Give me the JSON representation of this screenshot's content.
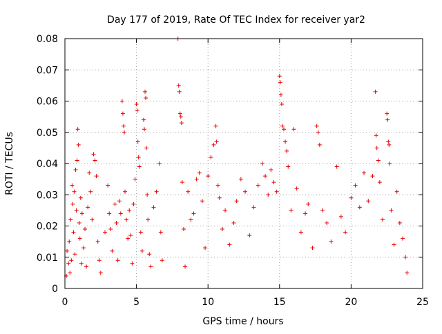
{
  "chart_data": {
    "type": "scatter",
    "title": "Day 177 of 2019, Rate Of TEC Index for receiver yar2",
    "xlabel": "GPS time / hours",
    "ylabel": "ROTI / TECUs",
    "xlim": [
      0,
      25
    ],
    "ylim": [
      0,
      0.08
    ],
    "grid": true,
    "marker": "+",
    "point_color": "#e60000",
    "x_ticks": [
      0,
      5,
      10,
      15,
      20,
      25
    ],
    "x_tick_labels": [
      "0",
      "5",
      "10",
      "15",
      "20",
      "25"
    ],
    "y_ticks": [
      0,
      0.01,
      0.02,
      0.03,
      0.04,
      0.05,
      0.06,
      0.07,
      0.08
    ],
    "y_tick_labels": [
      "0",
      "0.01",
      "0.02",
      "0.03",
      "0.04",
      "0.05",
      "0.06",
      "0.07",
      "0.08"
    ],
    "series": [
      {
        "name": "ROTI",
        "points": [
          [
            0.1,
            0.004
          ],
          [
            0.15,
            0.012
          ],
          [
            0.25,
            0.008
          ],
          [
            0.3,
            0.015
          ],
          [
            0.35,
            0.005
          ],
          [
            0.4,
            0.022
          ],
          [
            0.45,
            0.009
          ],
          [
            0.5,
            0.033
          ],
          [
            0.55,
            0.027
          ],
          [
            0.6,
            0.018
          ],
          [
            0.65,
            0.031
          ],
          [
            0.7,
            0.011
          ],
          [
            0.75,
            0.038
          ],
          [
            0.8,
            0.025
          ],
          [
            0.85,
            0.041
          ],
          [
            0.9,
            0.051
          ],
          [
            0.95,
            0.046
          ],
          [
            1.0,
            0.021
          ],
          [
            1.05,
            0.016
          ],
          [
            1.1,
            0.029
          ],
          [
            1.15,
            0.008
          ],
          [
            1.2,
            0.024
          ],
          [
            1.3,
            0.013
          ],
          [
            1.4,
            0.019
          ],
          [
            1.5,
            0.007
          ],
          [
            1.6,
            0.026
          ],
          [
            1.7,
            0.037
          ],
          [
            1.8,
            0.031
          ],
          [
            1.9,
            0.022
          ],
          [
            2.0,
            0.043
          ],
          [
            2.1,
            0.041
          ],
          [
            2.2,
            0.036
          ],
          [
            2.3,
            0.015
          ],
          [
            2.4,
            0.009
          ],
          [
            2.5,
            0.005
          ],
          [
            2.8,
            0.018
          ],
          [
            3.0,
            0.033
          ],
          [
            3.1,
            0.024
          ],
          [
            3.2,
            0.019
          ],
          [
            3.3,
            0.012
          ],
          [
            3.5,
            0.027
          ],
          [
            3.6,
            0.021
          ],
          [
            3.7,
            0.009
          ],
          [
            3.8,
            0.028
          ],
          [
            3.9,
            0.024
          ],
          [
            4.0,
            0.06
          ],
          [
            4.05,
            0.056
          ],
          [
            4.1,
            0.052
          ],
          [
            4.15,
            0.05
          ],
          [
            4.2,
            0.031
          ],
          [
            4.3,
            0.022
          ],
          [
            4.4,
            0.016
          ],
          [
            4.5,
            0.025
          ],
          [
            4.6,
            0.017
          ],
          [
            4.7,
            0.008
          ],
          [
            4.8,
            0.027
          ],
          [
            4.9,
            0.035
          ],
          [
            5.0,
            0.059
          ],
          [
            5.05,
            0.057
          ],
          [
            5.1,
            0.047
          ],
          [
            5.15,
            0.042
          ],
          [
            5.2,
            0.039
          ],
          [
            5.3,
            0.018
          ],
          [
            5.4,
            0.012
          ],
          [
            5.5,
            0.054
          ],
          [
            5.55,
            0.051
          ],
          [
            5.6,
            0.063
          ],
          [
            5.65,
            0.061
          ],
          [
            5.7,
            0.045
          ],
          [
            5.75,
            0.03
          ],
          [
            5.8,
            0.022
          ],
          [
            5.9,
            0.011
          ],
          [
            6.0,
            0.007
          ],
          [
            6.2,
            0.026
          ],
          [
            6.4,
            0.031
          ],
          [
            6.6,
            0.04
          ],
          [
            6.7,
            0.018
          ],
          [
            6.8,
            0.009
          ],
          [
            7.9,
            0.08
          ],
          [
            7.95,
            0.065
          ],
          [
            8.0,
            0.063
          ],
          [
            8.05,
            0.056
          ],
          [
            8.1,
            0.055
          ],
          [
            8.15,
            0.053
          ],
          [
            8.2,
            0.034
          ],
          [
            8.3,
            0.019
          ],
          [
            8.4,
            0.007
          ],
          [
            8.6,
            0.031
          ],
          [
            8.8,
            0.022
          ],
          [
            9.0,
            0.024
          ],
          [
            9.2,
            0.035
          ],
          [
            9.4,
            0.037
          ],
          [
            9.6,
            0.028
          ],
          [
            9.8,
            0.013
          ],
          [
            10.0,
            0.036
          ],
          [
            10.2,
            0.042
          ],
          [
            10.4,
            0.046
          ],
          [
            10.55,
            0.052
          ],
          [
            10.6,
            0.047
          ],
          [
            10.7,
            0.033
          ],
          [
            10.8,
            0.029
          ],
          [
            11.0,
            0.019
          ],
          [
            11.2,
            0.025
          ],
          [
            11.5,
            0.014
          ],
          [
            11.8,
            0.021
          ],
          [
            12.0,
            0.028
          ],
          [
            12.3,
            0.035
          ],
          [
            12.6,
            0.031
          ],
          [
            12.9,
            0.017
          ],
          [
            13.2,
            0.026
          ],
          [
            13.5,
            0.033
          ],
          [
            13.8,
            0.04
          ],
          [
            14.0,
            0.036
          ],
          [
            14.2,
            0.03
          ],
          [
            14.4,
            0.038
          ],
          [
            14.6,
            0.034
          ],
          [
            14.8,
            0.031
          ],
          [
            15.0,
            0.068
          ],
          [
            15.05,
            0.066
          ],
          [
            15.1,
            0.062
          ],
          [
            15.15,
            0.059
          ],
          [
            15.2,
            0.052
          ],
          [
            15.3,
            0.051
          ],
          [
            15.4,
            0.047
          ],
          [
            15.5,
            0.044
          ],
          [
            15.6,
            0.039
          ],
          [
            15.8,
            0.025
          ],
          [
            16.0,
            0.051
          ],
          [
            16.2,
            0.032
          ],
          [
            16.5,
            0.018
          ],
          [
            16.8,
            0.024
          ],
          [
            17.0,
            0.027
          ],
          [
            17.3,
            0.013
          ],
          [
            17.6,
            0.052
          ],
          [
            17.7,
            0.05
          ],
          [
            17.8,
            0.046
          ],
          [
            18.0,
            0.025
          ],
          [
            18.3,
            0.021
          ],
          [
            18.6,
            0.015
          ],
          [
            19.0,
            0.039
          ],
          [
            19.3,
            0.023
          ],
          [
            19.6,
            0.018
          ],
          [
            20.0,
            0.029
          ],
          [
            20.3,
            0.033
          ],
          [
            20.6,
            0.026
          ],
          [
            20.9,
            0.037
          ],
          [
            21.2,
            0.028
          ],
          [
            21.5,
            0.036
          ],
          [
            21.7,
            0.063
          ],
          [
            21.75,
            0.049
          ],
          [
            21.8,
            0.045
          ],
          [
            21.9,
            0.041
          ],
          [
            22.0,
            0.034
          ],
          [
            22.2,
            0.022
          ],
          [
            22.5,
            0.056
          ],
          [
            22.55,
            0.054
          ],
          [
            22.6,
            0.047
          ],
          [
            22.65,
            0.046
          ],
          [
            22.7,
            0.04
          ],
          [
            22.8,
            0.025
          ],
          [
            23.0,
            0.014
          ],
          [
            23.2,
            0.031
          ],
          [
            23.4,
            0.021
          ],
          [
            23.6,
            0.016
          ],
          [
            23.8,
            0.01
          ],
          [
            23.9,
            0.005
          ]
        ]
      }
    ]
  }
}
